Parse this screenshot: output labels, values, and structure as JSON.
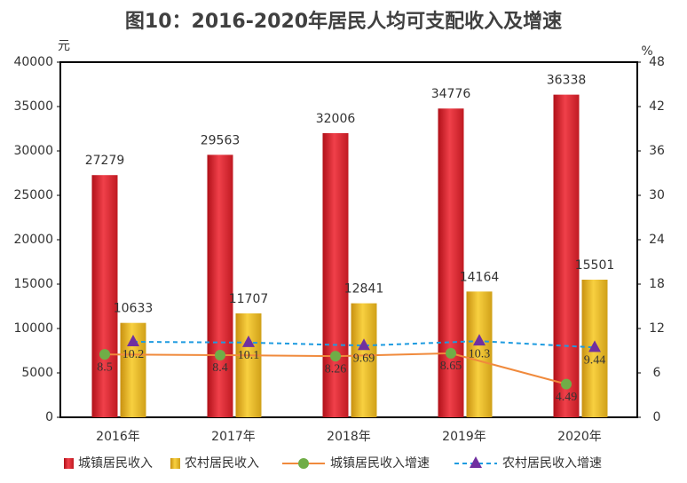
{
  "chart_data": {
    "type": "bar",
    "title": "图10：2016-2020年居民人均可支配收入及增速",
    "y_unit": "元",
    "y2_unit": "%",
    "categories": [
      "2016年",
      "2017年",
      "2018年",
      "2019年",
      "2020年"
    ],
    "series": [
      {
        "name": "城镇居民收入",
        "type": "bar",
        "color": "#e3262e",
        "values": [
          27279,
          29563,
          32006,
          34776,
          36338
        ]
      },
      {
        "name": "农村居民收入",
        "type": "bar",
        "color": "#e9b820",
        "values": [
          10633,
          11707,
          12841,
          14164,
          15501
        ]
      },
      {
        "name": "城镇居民收入增速",
        "type": "line",
        "axis": "y2",
        "color": "#f08a3c",
        "marker": "circle",
        "marker_color": "#70ad47",
        "dashed": false,
        "values": [
          8.5,
          8.4,
          8.26,
          8.65,
          4.49
        ]
      },
      {
        "name": "农村居民收入增速",
        "type": "line",
        "axis": "y2",
        "color": "#1e9be0",
        "marker": "triangle",
        "marker_color": "#7030a0",
        "dashed": true,
        "values": [
          10.2,
          10.1,
          9.69,
          10.3,
          9.44
        ]
      }
    ],
    "ylim": [
      0,
      40000
    ],
    "yticks": [
      0,
      5000,
      10000,
      15000,
      20000,
      25000,
      30000,
      35000,
      40000
    ],
    "y2lim": [
      0,
      48
    ],
    "y2ticks": [
      0,
      6,
      12,
      18,
      24,
      30,
      36,
      42,
      48
    ]
  }
}
